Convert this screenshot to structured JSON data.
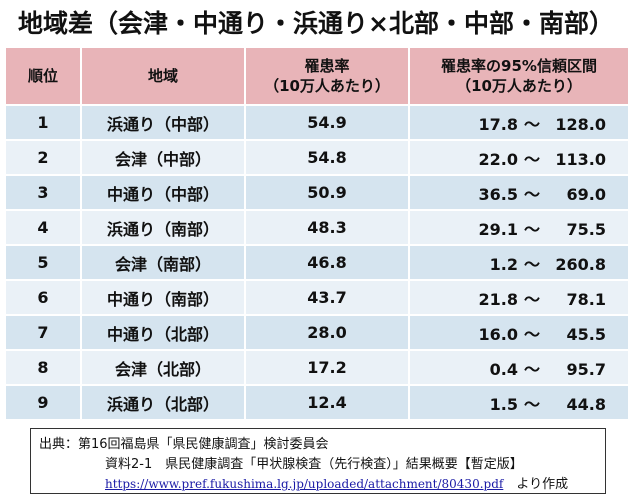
{
  "title": "地域差（会津・中通り・浜通り×北部・中部・南部）",
  "headers": {
    "rank": "順位",
    "region": "地域",
    "rate_line1": "罹患率",
    "rate_line2": "（10万人あたり）",
    "ci_line1": "罹患率の95%信頼区間",
    "ci_line2": "（10万人あたり）"
  },
  "rows": [
    {
      "rank": "1",
      "region": "浜通り（中部）",
      "rate": "54.9",
      "ci_low": "17.8",
      "sep": "～",
      "ci_high": "128.0"
    },
    {
      "rank": "2",
      "region": "会津（中部）",
      "rate": "54.8",
      "ci_low": "22.0",
      "sep": "～",
      "ci_high": "113.0"
    },
    {
      "rank": "3",
      "region": "中通り（中部）",
      "rate": "50.9",
      "ci_low": "36.5",
      "sep": "～",
      "ci_high": "69.0"
    },
    {
      "rank": "4",
      "region": "浜通り（南部）",
      "rate": "48.3",
      "ci_low": "29.1",
      "sep": "～",
      "ci_high": "75.5"
    },
    {
      "rank": "5",
      "region": "会津（南部）",
      "rate": "46.8",
      "ci_low": "1.2",
      "sep": "～",
      "ci_high": "260.8"
    },
    {
      "rank": "6",
      "region": "中通り（南部）",
      "rate": "43.7",
      "ci_low": "21.8",
      "sep": "～",
      "ci_high": "78.1"
    },
    {
      "rank": "7",
      "region": "中通り（北部）",
      "rate": "28.0",
      "ci_low": "16.0",
      "sep": "～",
      "ci_high": "45.5"
    },
    {
      "rank": "8",
      "region": "会津（北部）",
      "rate": "17.2",
      "ci_low": "0.4",
      "sep": "～",
      "ci_high": "95.7"
    },
    {
      "rank": "9",
      "region": "浜通り（北部）",
      "rate": "12.4",
      "ci_low": "1.5",
      "sep": "～",
      "ci_high": "44.8"
    }
  ],
  "source": {
    "line1": "出典：第16回福島県「県民健康調査」検討委員会",
    "line2": "資料2-1　県民健康調査「甲状腺検査（先行検査）」結果概要【暫定版】",
    "url": "https://www.pref.fukushima.lg.jp/uploaded/attachment/80430.pdf",
    "suffix": "　より作成"
  }
}
